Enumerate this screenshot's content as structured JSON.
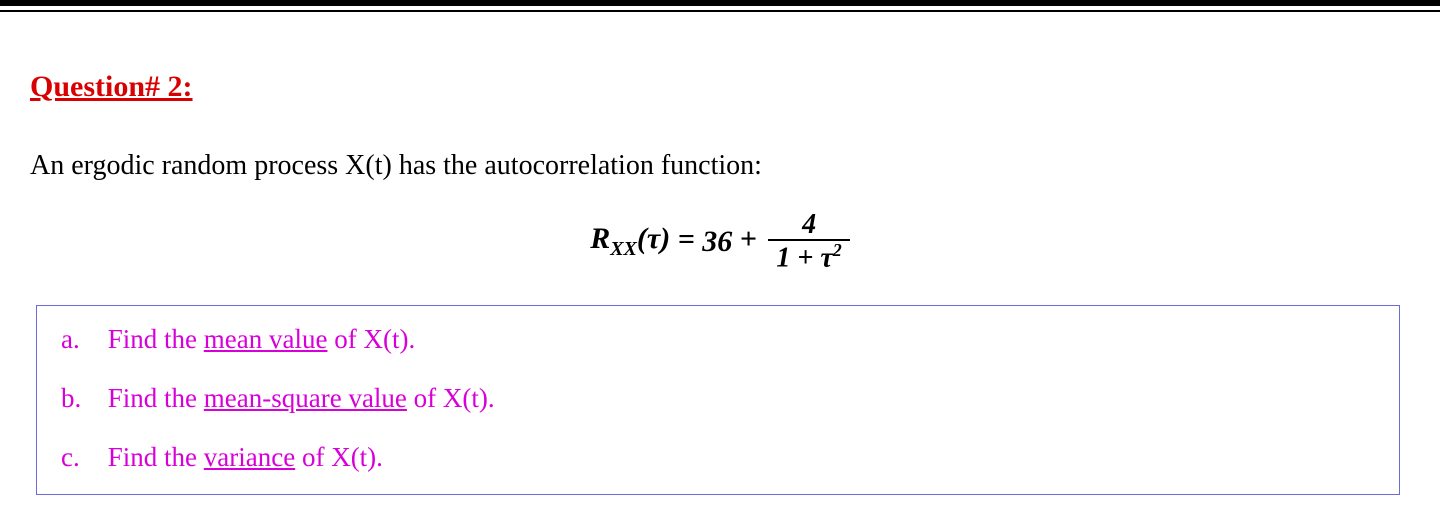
{
  "colors": {
    "heading": "#d80000",
    "body_text": "#000000",
    "subitem_text": "#d800d8",
    "box_border": "#6b6bdc",
    "rule": "#000000",
    "background": "#ffffff"
  },
  "fonts": {
    "family": "Times New Roman",
    "heading_size_pt": 22,
    "body_size_pt": 21,
    "formula_size_pt": 22
  },
  "heading": "Question# 2:",
  "intro": "An ergodic random process X(t) has the autocorrelation function:",
  "formula": {
    "lhs_base": "R",
    "lhs_subscript": "XX",
    "lhs_arg": "(τ)",
    "equals": " = ",
    "constant": "36",
    "plus": " + ",
    "numerator": "4",
    "denominator_prefix": "1 + τ",
    "denominator_exponent": "2"
  },
  "items": [
    {
      "marker": "a.",
      "pre": "Find the ",
      "ul": "mean value",
      "post": " of X(t)."
    },
    {
      "marker": "b.",
      "pre": "Find the ",
      "ul": "mean-square value",
      "post": " of X(t)."
    },
    {
      "marker": "c.",
      "pre": "Find the ",
      "ul": "variance",
      "post": " of X(t)."
    }
  ]
}
